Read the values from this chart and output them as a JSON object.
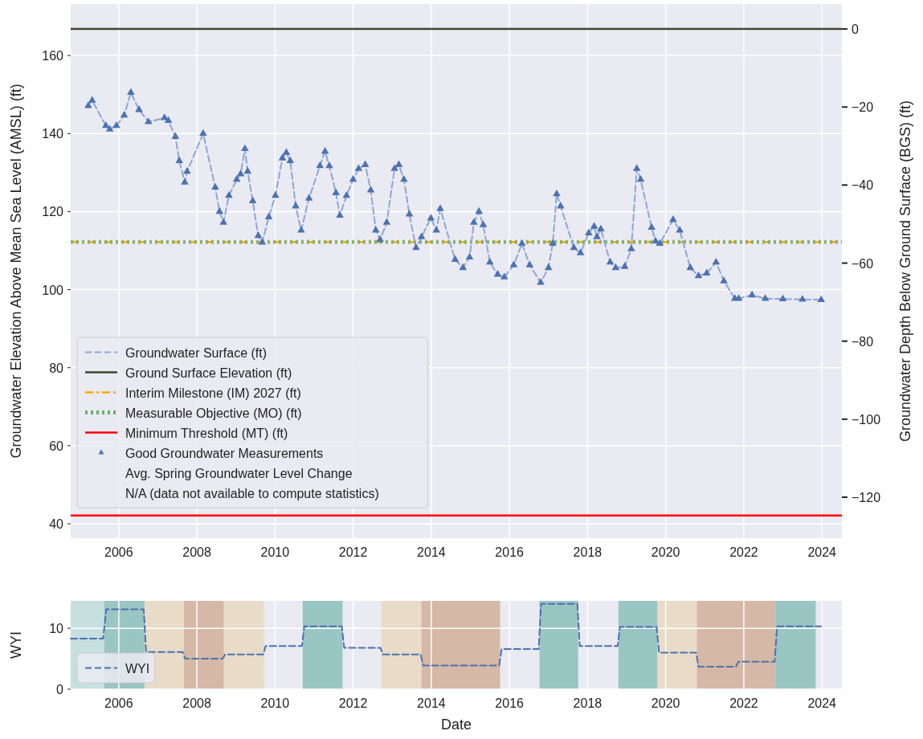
{
  "chart_data": [
    {
      "type": "scatter",
      "ylabel": "Groundwater Elevation Above Mean Sea Level (AMSL) (ft)",
      "y2label": "Groundwater Depth Below Ground Surface (BGS) (ft)",
      "xlim": [
        2004.77,
        2024.51
      ],
      "xticks": [
        2006,
        2008,
        2010,
        2012,
        2014,
        2016,
        2018,
        2020,
        2022,
        2024
      ],
      "ylim": [
        36.3,
        173.2
      ],
      "yticks": [
        40,
        60,
        80,
        100,
        120,
        140,
        160
      ],
      "y2lim": [
        -130.5,
        6.4
      ],
      "y2ticks": [
        {
          "value": -120,
          "label": "−120"
        },
        {
          "value": -100,
          "label": "−100"
        },
        {
          "value": -80,
          "label": "−80"
        },
        {
          "value": -60,
          "label": "−60"
        },
        {
          "value": -40,
          "label": "−40"
        },
        {
          "value": -20,
          "label": "−20"
        },
        0
      ],
      "grid": true,
      "legend": "bottom left",
      "series": [
        {
          "name": "Groundwater Surface (ft)",
          "type": "line",
          "color": "#8ea6d6",
          "line_style": "dashed",
          "marker": "none",
          "x": [
            2005.22,
            2005.32,
            2005.67,
            2005.77,
            2005.94,
            2006.14,
            2006.31,
            2006.52,
            2006.76,
            2007.17,
            2007.27,
            2007.45,
            2007.55,
            2007.69,
            2007.75,
            2008.16,
            2008.47,
            2008.58,
            2008.68,
            2008.82,
            2009.02,
            2009.12,
            2009.23,
            2009.3,
            2009.43,
            2009.57,
            2009.67,
            2009.84,
            2010.01,
            2010.19,
            2010.29,
            2010.39,
            2010.53,
            2010.67,
            2010.87,
            2011.15,
            2011.28,
            2011.39,
            2011.56,
            2011.66,
            2011.83,
            2012.0,
            2012.14,
            2012.31,
            2012.45,
            2012.58,
            2012.69,
            2012.86,
            2013.06,
            2013.17,
            2013.3,
            2013.44,
            2013.61,
            2013.75,
            2013.99,
            2014.13,
            2014.23,
            2014.61,
            2014.81,
            2014.98,
            2015.09,
            2015.22,
            2015.33,
            2015.5,
            2015.7,
            2015.87,
            2016.11,
            2016.32,
            2016.52,
            2016.8,
            2017.0,
            2017.11,
            2017.21,
            2017.31,
            2017.65,
            2017.82,
            2018.03,
            2018.17,
            2018.24,
            2018.34,
            2018.58,
            2018.72,
            2018.95,
            2019.12,
            2019.26,
            2019.36,
            2019.64,
            2019.74,
            2019.85,
            2020.19,
            2020.36,
            2020.63,
            2020.84,
            2021.05,
            2021.29,
            2021.49,
            2021.77,
            2021.87,
            2022.21,
            2022.55,
            2023.0,
            2023.5,
            2023.98
          ],
          "values": [
            147.1,
            148.5,
            142.0,
            141.1,
            142.0,
            144.7,
            150.5,
            146.1,
            143.0,
            144.0,
            143.3,
            139.2,
            133.0,
            127.5,
            130.3,
            140.0,
            126.2,
            120.0,
            117.2,
            124.1,
            128.2,
            129.6,
            136.1,
            130.3,
            122.7,
            113.8,
            112.1,
            118.6,
            124.1,
            133.7,
            135.1,
            133.0,
            121.4,
            115.2,
            123.4,
            131.7,
            135.4,
            131.7,
            124.8,
            119.0,
            124.1,
            128.2,
            131.0,
            132.0,
            125.5,
            115.2,
            112.8,
            117.2,
            131.0,
            132.0,
            128.2,
            119.3,
            110.7,
            113.5,
            118.3,
            115.2,
            120.7,
            107.7,
            105.6,
            108.3,
            117.2,
            120.0,
            116.6,
            107.0,
            103.9,
            103.2,
            106.3,
            111.8,
            106.3,
            101.8,
            105.6,
            111.8,
            124.5,
            121.4,
            110.7,
            109.4,
            114.5,
            116.2,
            113.5,
            115.5,
            107.0,
            105.6,
            105.9,
            110.4,
            131.0,
            128.2,
            115.9,
            112.4,
            111.8,
            117.9,
            115.2,
            105.6,
            103.5,
            104.2,
            107.0,
            102.2,
            97.7,
            97.7,
            98.6,
            97.7,
            97.6,
            97.5,
            97.4
          ]
        },
        {
          "name": "Good Groundwater Measurements",
          "color": "#4c72b0",
          "marker": "triangle",
          "x": [
            2005.22,
            2005.32,
            2005.67,
            2005.77,
            2005.94,
            2006.14,
            2006.31,
            2006.52,
            2006.76,
            2007.17,
            2007.27,
            2007.45,
            2007.55,
            2007.69,
            2007.75,
            2008.16,
            2008.47,
            2008.58,
            2008.68,
            2008.82,
            2009.02,
            2009.12,
            2009.23,
            2009.3,
            2009.43,
            2009.57,
            2009.67,
            2009.84,
            2010.01,
            2010.19,
            2010.29,
            2010.39,
            2010.53,
            2010.67,
            2010.87,
            2011.15,
            2011.28,
            2011.39,
            2011.56,
            2011.66,
            2011.83,
            2012.0,
            2012.14,
            2012.31,
            2012.45,
            2012.58,
            2012.69,
            2012.86,
            2013.06,
            2013.17,
            2013.3,
            2013.44,
            2013.61,
            2013.75,
            2013.99,
            2014.13,
            2014.23,
            2014.61,
            2014.81,
            2014.98,
            2015.09,
            2015.22,
            2015.33,
            2015.5,
            2015.7,
            2015.87,
            2016.11,
            2016.32,
            2016.52,
            2016.8,
            2017.0,
            2017.11,
            2017.21,
            2017.31,
            2017.65,
            2017.82,
            2018.03,
            2018.17,
            2018.24,
            2018.34,
            2018.58,
            2018.72,
            2018.95,
            2019.12,
            2019.26,
            2019.36,
            2019.64,
            2019.74,
            2019.85,
            2020.19,
            2020.36,
            2020.63,
            2020.84,
            2021.05,
            2021.29,
            2021.49,
            2021.77,
            2021.87,
            2022.21,
            2022.55,
            2023.0,
            2023.5,
            2023.98
          ],
          "values": [
            147.1,
            148.5,
            142.0,
            141.1,
            142.0,
            144.7,
            150.5,
            146.1,
            143.0,
            144.0,
            143.3,
            139.2,
            133.0,
            127.5,
            130.3,
            140.0,
            126.2,
            120.0,
            117.2,
            124.1,
            128.2,
            129.6,
            136.1,
            130.3,
            122.7,
            113.8,
            112.1,
            118.6,
            124.1,
            133.7,
            135.1,
            133.0,
            121.4,
            115.2,
            123.4,
            131.7,
            135.4,
            131.7,
            124.8,
            119.0,
            124.1,
            128.2,
            131.0,
            132.0,
            125.5,
            115.2,
            112.8,
            117.2,
            131.0,
            132.0,
            128.2,
            119.3,
            110.7,
            113.5,
            118.3,
            115.2,
            120.7,
            107.7,
            105.6,
            108.3,
            117.2,
            120.0,
            116.6,
            107.0,
            103.9,
            103.2,
            106.3,
            111.8,
            106.3,
            101.8,
            105.6,
            111.8,
            124.5,
            121.4,
            110.7,
            109.4,
            114.5,
            116.2,
            113.5,
            115.5,
            107.0,
            105.6,
            105.9,
            110.4,
            131.0,
            128.2,
            115.9,
            112.4,
            111.8,
            117.9,
            115.2,
            105.6,
            103.5,
            104.2,
            107.0,
            102.2,
            97.7,
            97.7,
            98.6,
            97.7,
            97.6,
            97.5,
            97.4
          ]
        }
      ],
      "ref_lines": [
        {
          "axis": "y",
          "value": 166.8,
          "label": "Ground Surface Elevation (ft)",
          "color": "#3d4a28",
          "line_style": "solid"
        },
        {
          "axis": "y",
          "value": 112.2,
          "label": "Interim Milestone (IM) 2027 (ft)",
          "color": "#ffa500",
          "line_style": "dashdot"
        },
        {
          "axis": "y",
          "value": 112.2,
          "label": "Measurable Objective (MO) (ft)",
          "color": "#6aaf6a",
          "line_style": "dotted"
        },
        {
          "axis": "y",
          "value": 42.1,
          "label": "Minimum Threshold (MT) (ft)",
          "color": "#ff0000",
          "line_style": "solid"
        }
      ],
      "annotations": [
        "Avg. Spring Groundwater Level Change",
        "N/A (data not available to compute statistics)"
      ]
    },
    {
      "type": "line",
      "xlabel": "Date",
      "ylabel": "WYI",
      "xlim": [
        2004.77,
        2024.51
      ],
      "xticks": [
        2006,
        2008,
        2010,
        2012,
        2014,
        2016,
        2018,
        2020,
        2022,
        2024
      ],
      "ylim": [
        0,
        14.5
      ],
      "yticks": [
        0,
        10
      ],
      "grid": true,
      "legend": "bottom left",
      "line_style": "dashed",
      "series": [
        {
          "name": "WYI",
          "color": "#4c72b0",
          "x": [
            2004.77,
            2005.6,
            2005.68,
            2006.64,
            2006.7,
            2007.64,
            2007.7,
            2008.66,
            2008.72,
            2009.7,
            2009.76,
            2010.69,
            2010.75,
            2011.71,
            2011.77,
            2012.7,
            2012.76,
            2013.73,
            2013.79,
            2015.74,
            2015.8,
            2016.75,
            2016.81,
            2017.74,
            2017.8,
            2018.77,
            2018.83,
            2019.77,
            2019.83,
            2020.78,
            2020.84,
            2021.8,
            2021.86,
            2022.79,
            2022.85,
            2023.98
          ],
          "values": [
            8.3,
            8.3,
            13.1,
            13.1,
            6.1,
            6.1,
            5.0,
            5.0,
            5.7,
            5.7,
            7.1,
            7.1,
            10.3,
            10.3,
            6.8,
            6.8,
            5.7,
            5.7,
            3.9,
            3.9,
            6.6,
            6.6,
            14.0,
            14.0,
            7.1,
            7.1,
            10.2,
            10.2,
            6.0,
            6.0,
            3.7,
            3.7,
            4.5,
            4.5,
            10.3,
            10.3
          ]
        }
      ],
      "bands": [
        {
          "axis": "x",
          "from": 2004.77,
          "to": 2005.63,
          "color": "#c6e0e0"
        },
        {
          "axis": "x",
          "from": 2005.63,
          "to": 2006.66,
          "color": "#99c5c3"
        },
        {
          "axis": "x",
          "from": 2006.66,
          "to": 2007.67,
          "color": "#e8dcc8"
        },
        {
          "axis": "x",
          "from": 2007.67,
          "to": 2008.69,
          "color": "#d5b8a5"
        },
        {
          "axis": "x",
          "from": 2008.69,
          "to": 2009.72,
          "color": "#e8dcc8"
        },
        {
          "axis": "x",
          "from": 2010.71,
          "to": 2011.73,
          "color": "#99c5c3"
        },
        {
          "axis": "x",
          "from": 2012.72,
          "to": 2013.75,
          "color": "#e8dcc8"
        },
        {
          "axis": "x",
          "from": 2013.75,
          "to": 2015.76,
          "color": "#d5b8a5"
        },
        {
          "axis": "x",
          "from": 2016.77,
          "to": 2017.76,
          "color": "#99c5c3"
        },
        {
          "axis": "x",
          "from": 2018.79,
          "to": 2019.79,
          "color": "#99c5c3"
        },
        {
          "axis": "x",
          "from": 2019.79,
          "to": 2020.8,
          "color": "#e8dcc8"
        },
        {
          "axis": "x",
          "from": 2020.8,
          "to": 2022.81,
          "color": "#d5b8a5"
        },
        {
          "axis": "x",
          "from": 2022.81,
          "to": 2023.84,
          "color": "#99c5c3"
        }
      ]
    }
  ]
}
